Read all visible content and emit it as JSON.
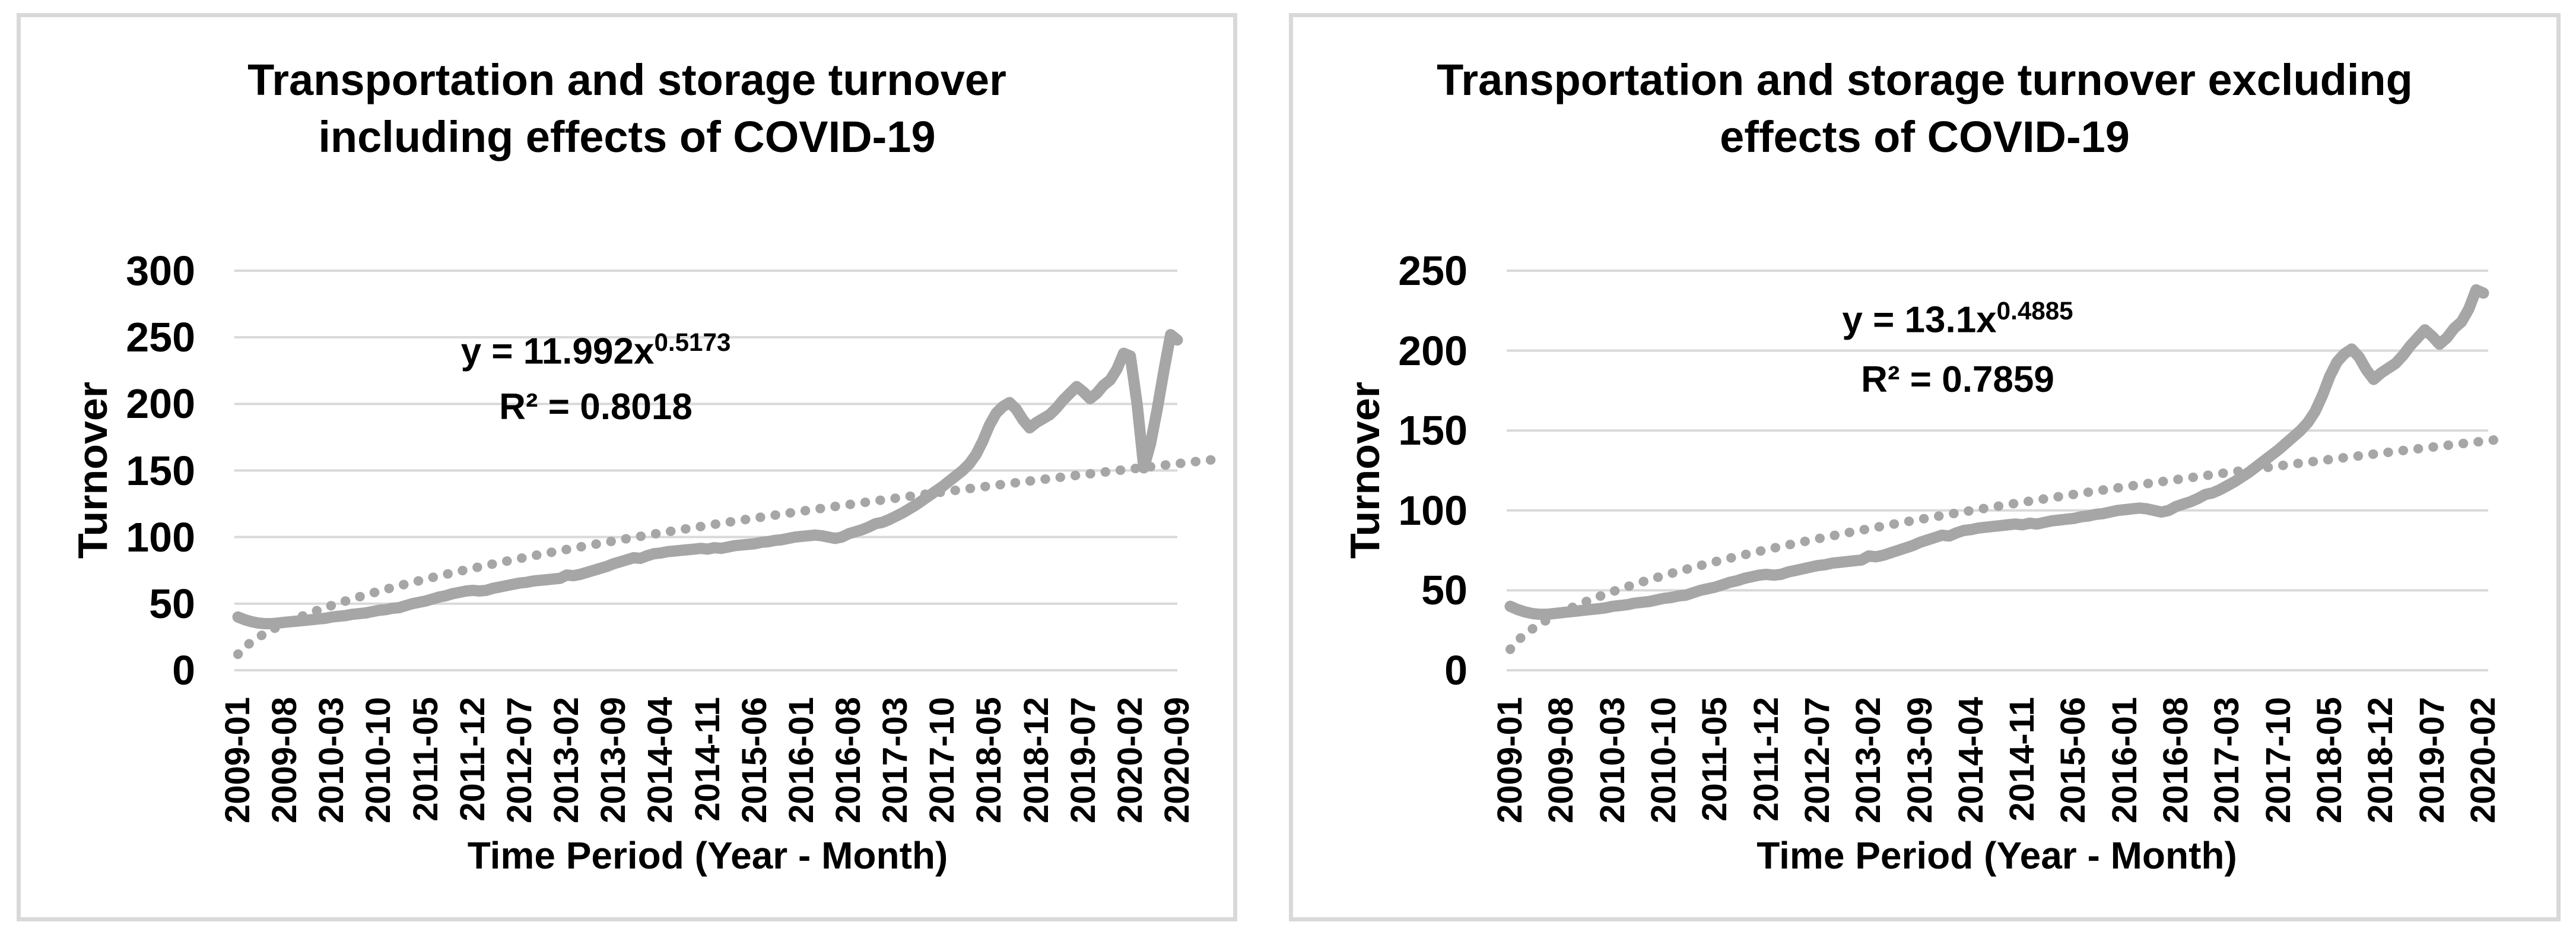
{
  "chart_data": [
    {
      "type": "line",
      "title_line1": "Transportation and storage turnover",
      "title_line2": "including effects of COVID-19",
      "equation_base": "y = 11.992x",
      "equation_exponent": "0.5173",
      "r_squared_label": "R² = 0.8018",
      "trendline": {
        "type": "power",
        "a": 11.992,
        "b": 0.5173
      },
      "ylabel": "Turnover",
      "xlabel": "Time Period (Year - Month)",
      "ylim": [
        0,
        300
      ],
      "y_ticks": [
        0,
        50,
        100,
        150,
        200,
        250,
        300
      ],
      "x_tick_interval": 7,
      "x_tick_labels": [
        "2009-01",
        "2009-08",
        "2010-03",
        "2010-10",
        "2011-05",
        "2011-12",
        "2012-07",
        "2013-02",
        "2013-09",
        "2014-04",
        "2014-11",
        "2015-06",
        "2016-01",
        "2016-08",
        "2017-03",
        "2017-10",
        "2018-05",
        "2018-12",
        "2019-07",
        "2020-02",
        "2020-09"
      ],
      "categories": [
        "2009-01",
        "2009-02",
        "2009-03",
        "2009-04",
        "2009-05",
        "2009-06",
        "2009-07",
        "2009-08",
        "2009-09",
        "2009-10",
        "2009-11",
        "2009-12",
        "2010-01",
        "2010-02",
        "2010-03",
        "2010-04",
        "2010-05",
        "2010-06",
        "2010-07",
        "2010-08",
        "2010-09",
        "2010-10",
        "2010-11",
        "2010-12",
        "2011-01",
        "2011-02",
        "2011-03",
        "2011-04",
        "2011-05",
        "2011-06",
        "2011-07",
        "2011-08",
        "2011-09",
        "2011-10",
        "2011-11",
        "2011-12",
        "2012-01",
        "2012-02",
        "2012-03",
        "2012-04",
        "2012-05",
        "2012-06",
        "2012-07",
        "2012-08",
        "2012-09",
        "2012-10",
        "2012-11",
        "2012-12",
        "2013-01",
        "2013-02",
        "2013-03",
        "2013-04",
        "2013-05",
        "2013-06",
        "2013-07",
        "2013-08",
        "2013-09",
        "2013-10",
        "2013-11",
        "2013-12",
        "2014-01",
        "2014-02",
        "2014-03",
        "2014-04",
        "2014-05",
        "2014-06",
        "2014-07",
        "2014-08",
        "2014-09",
        "2014-10",
        "2014-11",
        "2014-12",
        "2015-01",
        "2015-02",
        "2015-03",
        "2015-04",
        "2015-05",
        "2015-06",
        "2015-07",
        "2015-08",
        "2015-09",
        "2015-10",
        "2015-11",
        "2015-12",
        "2016-01",
        "2016-02",
        "2016-03",
        "2016-04",
        "2016-05",
        "2016-06",
        "2016-07",
        "2016-08",
        "2016-09",
        "2016-10",
        "2016-11",
        "2016-12",
        "2017-01",
        "2017-02",
        "2017-03",
        "2017-04",
        "2017-05",
        "2017-06",
        "2017-07",
        "2017-08",
        "2017-09",
        "2017-10",
        "2017-11",
        "2017-12",
        "2018-01",
        "2018-02",
        "2018-03",
        "2018-04",
        "2018-05",
        "2018-06",
        "2018-07",
        "2018-08",
        "2018-09",
        "2018-10",
        "2018-11",
        "2018-12",
        "2019-01",
        "2019-02",
        "2019-03",
        "2019-04",
        "2019-05",
        "2019-06",
        "2019-07",
        "2019-08",
        "2019-09",
        "2019-10",
        "2019-11",
        "2019-12",
        "2020-01",
        "2020-02",
        "2020-03",
        "2020-04",
        "2020-05",
        "2020-06",
        "2020-07",
        "2020-08",
        "2020-09"
      ],
      "values": [
        40,
        38,
        36.5,
        35.5,
        35,
        35,
        35.5,
        36,
        36.5,
        37,
        37.5,
        38,
        38.5,
        39,
        40,
        40.5,
        41,
        42,
        42.5,
        43,
        44,
        45,
        45.5,
        46.5,
        47,
        48.5,
        50,
        51,
        52,
        53.5,
        55,
        56,
        57.5,
        58.5,
        59.5,
        60,
        59.5,
        60,
        61.5,
        62.5,
        63.5,
        64.5,
        65.5,
        66,
        67,
        67.5,
        68,
        68.5,
        69,
        71.5,
        71,
        72,
        73.5,
        75,
        76.5,
        78,
        80,
        81.5,
        83,
        84.5,
        84,
        86,
        87.5,
        88,
        89,
        89.5,
        90,
        90.5,
        91,
        91.5,
        91,
        92,
        91.5,
        92.5,
        93.5,
        94,
        94.5,
        95,
        96,
        96.5,
        97.5,
        98,
        99,
        100,
        100.5,
        101,
        101.5,
        101,
        100,
        99,
        100,
        102.5,
        104,
        105.5,
        107.5,
        110,
        111,
        113,
        115.5,
        118,
        121,
        124,
        127.5,
        131,
        134.5,
        138,
        142,
        146,
        150,
        155,
        162,
        172,
        184,
        193,
        198,
        201,
        196,
        188,
        182,
        186,
        189,
        192,
        197,
        203,
        208,
        213,
        209,
        204,
        208,
        214,
        218,
        226,
        238,
        236,
        200,
        152,
        170,
        196,
        225,
        252,
        248
      ],
      "series_color": "#a6a6a6",
      "trend_color": "#a6a6a6",
      "gridline_color": "#d9d9d9",
      "grid": "horizontal",
      "legend": "none"
    },
    {
      "type": "line",
      "title_line1": "Transportation and storage turnover excluding",
      "title_line2": "effects of COVID-19",
      "equation_base": "y = 13.1x",
      "equation_exponent": "0.4885",
      "r_squared_label": "R² = 0.7859",
      "trendline": {
        "type": "power",
        "a": 13.1,
        "b": 0.4885
      },
      "ylabel": "Turnover",
      "xlabel": "Time Period (Year - Month)",
      "ylim": [
        0,
        250
      ],
      "y_ticks": [
        0,
        50,
        100,
        150,
        200,
        250
      ],
      "x_tick_interval": 7,
      "x_tick_labels": [
        "2009-01",
        "2009-08",
        "2010-03",
        "2010-10",
        "2011-05",
        "2011-12",
        "2012-07",
        "2013-02",
        "2013-09",
        "2014-04",
        "2014-11",
        "2015-06",
        "2016-01",
        "2016-08",
        "2017-03",
        "2017-10",
        "2018-05",
        "2018-12",
        "2019-07",
        "2020-02"
      ],
      "categories": [
        "2009-01",
        "2009-02",
        "2009-03",
        "2009-04",
        "2009-05",
        "2009-06",
        "2009-07",
        "2009-08",
        "2009-09",
        "2009-10",
        "2009-11",
        "2009-12",
        "2010-01",
        "2010-02",
        "2010-03",
        "2010-04",
        "2010-05",
        "2010-06",
        "2010-07",
        "2010-08",
        "2010-09",
        "2010-10",
        "2010-11",
        "2010-12",
        "2011-01",
        "2011-02",
        "2011-03",
        "2011-04",
        "2011-05",
        "2011-06",
        "2011-07",
        "2011-08",
        "2011-09",
        "2011-10",
        "2011-11",
        "2011-12",
        "2012-01",
        "2012-02",
        "2012-03",
        "2012-04",
        "2012-05",
        "2012-06",
        "2012-07",
        "2012-08",
        "2012-09",
        "2012-10",
        "2012-11",
        "2012-12",
        "2013-01",
        "2013-02",
        "2013-03",
        "2013-04",
        "2013-05",
        "2013-06",
        "2013-07",
        "2013-08",
        "2013-09",
        "2013-10",
        "2013-11",
        "2013-12",
        "2014-01",
        "2014-02",
        "2014-03",
        "2014-04",
        "2014-05",
        "2014-06",
        "2014-07",
        "2014-08",
        "2014-09",
        "2014-10",
        "2014-11",
        "2014-12",
        "2015-01",
        "2015-02",
        "2015-03",
        "2015-04",
        "2015-05",
        "2015-06",
        "2015-07",
        "2015-08",
        "2015-09",
        "2015-10",
        "2015-11",
        "2015-12",
        "2016-01",
        "2016-02",
        "2016-03",
        "2016-04",
        "2016-05",
        "2016-06",
        "2016-07",
        "2016-08",
        "2016-09",
        "2016-10",
        "2016-11",
        "2016-12",
        "2017-01",
        "2017-02",
        "2017-03",
        "2017-04",
        "2017-05",
        "2017-06",
        "2017-07",
        "2017-08",
        "2017-09",
        "2017-10",
        "2017-11",
        "2017-12",
        "2018-01",
        "2018-02",
        "2018-03",
        "2018-04",
        "2018-05",
        "2018-06",
        "2018-07",
        "2018-08",
        "2018-09",
        "2018-10",
        "2018-11",
        "2018-12",
        "2019-01",
        "2019-02",
        "2019-03",
        "2019-04",
        "2019-05",
        "2019-06",
        "2019-07",
        "2019-08",
        "2019-09",
        "2019-10",
        "2019-11",
        "2019-12",
        "2020-01",
        "2020-02"
      ],
      "values": [
        40,
        38,
        36.5,
        35.5,
        35,
        35,
        35.5,
        36,
        36.5,
        37,
        37.5,
        38,
        38.5,
        39,
        40,
        40.5,
        41,
        42,
        42.5,
        43,
        44,
        45,
        45.5,
        46.5,
        47,
        48.5,
        50,
        51,
        52,
        53.5,
        55,
        56,
        57.5,
        58.5,
        59.5,
        60,
        59.5,
        60,
        61.5,
        62.5,
        63.5,
        64.5,
        65.5,
        66,
        67,
        67.5,
        68,
        68.5,
        69,
        71.5,
        71,
        72,
        73.5,
        75,
        76.5,
        78,
        80,
        81.5,
        83,
        84.5,
        84,
        86,
        87.5,
        88,
        89,
        89.5,
        90,
        90.5,
        91,
        91.5,
        91,
        92,
        91.5,
        92.5,
        93.5,
        94,
        94.5,
        95,
        96,
        96.5,
        97.5,
        98,
        99,
        100,
        100.5,
        101,
        101.5,
        101,
        100,
        99,
        100,
        102.5,
        104,
        105.5,
        107.5,
        110,
        111,
        113,
        115.5,
        118,
        121,
        124,
        127.5,
        131,
        134.5,
        138,
        142,
        146,
        150,
        155,
        162,
        172,
        184,
        193,
        198,
        201,
        196,
        188,
        182,
        186,
        189,
        192,
        197,
        203,
        208,
        213,
        209,
        204,
        208,
        214,
        218,
        226,
        238,
        236
      ],
      "series_color": "#a6a6a6",
      "trend_color": "#a6a6a6",
      "gridline_color": "#d9d9d9",
      "grid": "horizontal",
      "legend": "none"
    }
  ]
}
